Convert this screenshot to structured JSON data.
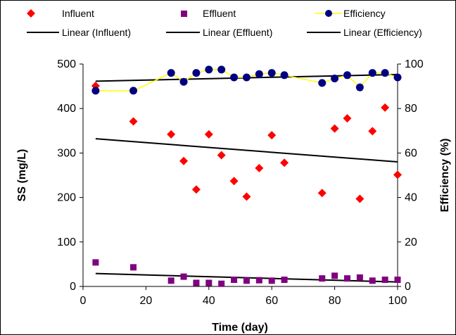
{
  "chart_data": {
    "type": "scatter",
    "xlabel": "Time (day)",
    "ylabel": "SS (mg/L)",
    "y2label": "Efficiency (%)",
    "xlim": [
      0,
      100
    ],
    "ylim": [
      0,
      500
    ],
    "y2lim": [
      0,
      100
    ],
    "x_ticks": [
      "0",
      "20",
      "40",
      "60",
      "80",
      "100"
    ],
    "y_ticks": [
      "0",
      "100",
      "200",
      "300",
      "400",
      "500"
    ],
    "y2_ticks": [
      "0",
      "20",
      "40",
      "60",
      "80",
      "100"
    ],
    "grid": false,
    "legend_position": "top",
    "series": [
      {
        "name": "Influent",
        "axis": "left",
        "marker": "diamond",
        "color": "#ff0000",
        "points": [
          [
            4,
            451
          ],
          [
            16,
            371
          ],
          [
            28,
            342
          ],
          [
            32,
            282
          ],
          [
            36,
            218
          ],
          [
            40,
            342
          ],
          [
            44,
            295
          ],
          [
            48,
            237
          ],
          [
            52,
            202
          ],
          [
            56,
            266
          ],
          [
            60,
            340
          ],
          [
            64,
            278
          ],
          [
            76,
            210
          ],
          [
            80,
            355
          ],
          [
            84,
            378
          ],
          [
            88,
            197
          ],
          [
            92,
            349
          ],
          [
            96,
            402
          ],
          [
            100,
            251
          ]
        ]
      },
      {
        "name": "Effluent",
        "axis": "left",
        "marker": "square",
        "color": "#800080",
        "points": [
          [
            4,
            54
          ],
          [
            16,
            43
          ],
          [
            28,
            13
          ],
          [
            32,
            22
          ],
          [
            36,
            8
          ],
          [
            40,
            8
          ],
          [
            44,
            6
          ],
          [
            48,
            15
          ],
          [
            52,
            13
          ],
          [
            56,
            14
          ],
          [
            60,
            13
          ],
          [
            64,
            15
          ],
          [
            76,
            18
          ],
          [
            80,
            24
          ],
          [
            84,
            18
          ],
          [
            88,
            20
          ],
          [
            92,
            13
          ],
          [
            96,
            15
          ],
          [
            100,
            15
          ]
        ]
      },
      {
        "name": "Efficiency",
        "axis": "right",
        "marker": "circle",
        "color": "#000080",
        "line_color": "#ffff00",
        "points": [
          [
            4,
            88
          ],
          [
            16,
            88
          ],
          [
            28,
            96
          ],
          [
            32,
            92
          ],
          [
            36,
            96
          ],
          [
            40,
            97.5
          ],
          [
            44,
            97.5
          ],
          [
            48,
            94
          ],
          [
            52,
            94
          ],
          [
            56,
            95.5
          ],
          [
            60,
            96
          ],
          [
            64,
            95
          ],
          [
            76,
            91.5
          ],
          [
            80,
            93.5
          ],
          [
            84,
            95
          ],
          [
            88,
            89.5
          ],
          [
            92,
            96
          ],
          [
            96,
            96
          ],
          [
            100,
            94
          ]
        ]
      }
    ],
    "trendlines": [
      {
        "name": "Linear (Influent)",
        "axis": "left",
        "color": "#000000",
        "from": [
          4,
          332
        ],
        "to": [
          100,
          280
        ]
      },
      {
        "name": "Linear (Effluent)",
        "axis": "left",
        "color": "#000000",
        "from": [
          4,
          29
        ],
        "to": [
          100,
          10
        ]
      },
      {
        "name": "Linear (Efficiency)",
        "axis": "right",
        "color": "#000000",
        "from": [
          4,
          92.3
        ],
        "to": [
          100,
          95.3
        ]
      }
    ]
  },
  "legend": {
    "influent": "Influent",
    "effluent": "Effluent",
    "efficiency": "Efficiency",
    "linear_influent": "Linear (Influent)",
    "linear_effluent": "Linear (Effluent)",
    "linear_efficiency": "Linear (Efficiency)"
  }
}
